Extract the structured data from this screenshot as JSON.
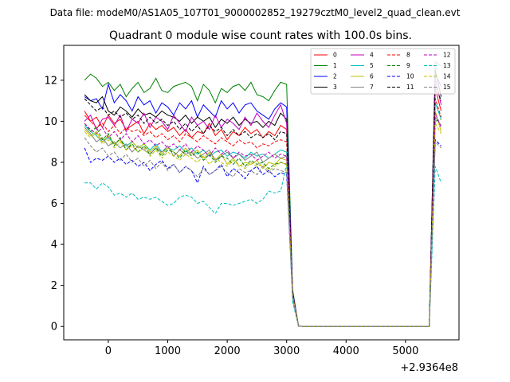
{
  "header": {
    "datafile": "Data file: modeM0/AS1A05_107T01_9000002852_19279cztM0_level2_quad_clean.evt"
  },
  "chart_data": {
    "type": "line",
    "title": "Quadrant 0 module wise count rates with 100.0s bins.",
    "xlabel": "",
    "ylabel": "",
    "x_offset_label": "+2.9364e8",
    "xlim": [
      -750,
      5900
    ],
    "ylim": [
      -0.65,
      13.7
    ],
    "xticks": [
      0,
      1000,
      2000,
      3000,
      4000,
      5000
    ],
    "yticks": [
      0,
      2,
      4,
      6,
      8,
      10,
      12
    ],
    "grid": false,
    "legend_position": "top-right",
    "legend_columns": 4,
    "x": [
      -400,
      -300,
      -200,
      -100,
      0,
      100,
      200,
      300,
      400,
      500,
      600,
      700,
      800,
      900,
      1000,
      1100,
      1200,
      1300,
      1400,
      1500,
      1600,
      1700,
      1800,
      1900,
      2000,
      2100,
      2200,
      2300,
      2400,
      2500,
      2600,
      2700,
      2800,
      2900,
      3000,
      3100,
      3200,
      3300,
      3400,
      3500,
      3600,
      3700,
      3800,
      3900,
      4000,
      4100,
      4200,
      4300,
      4400,
      4500,
      4600,
      4700,
      4800,
      4900,
      5000,
      5100,
      5200,
      5300,
      5400,
      5500,
      5600
    ],
    "series": [
      {
        "name": "0",
        "color": "#ff0000",
        "dash": false,
        "values": [
          10.5,
          10.0,
          10.2,
          9.7,
          10.3,
          9.9,
          10.1,
          9.6,
          9.8,
          10.0,
          9.4,
          9.9,
          9.6,
          9.8,
          9.5,
          9.7,
          9.3,
          9.6,
          9.2,
          9.5,
          9.4,
          9.9,
          9.3,
          9.6,
          9.1,
          9.5,
          9.3,
          9.7,
          9.4,
          9.6,
          9.2,
          9.5,
          9.3,
          9.8,
          9.6,
          1.6,
          0.02,
          0,
          0,
          0,
          0,
          0,
          0,
          0,
          0,
          0,
          0,
          0,
          0,
          0,
          0,
          0,
          0,
          0,
          0,
          0,
          0,
          0,
          0,
          11.6,
          10.5
        ]
      },
      {
        "name": "1",
        "color": "#008000",
        "dash": false,
        "values": [
          12.0,
          12.3,
          12.1,
          11.7,
          11.9,
          11.5,
          11.8,
          11.2,
          11.6,
          11.9,
          11.4,
          11.6,
          12.1,
          11.5,
          11.4,
          11.7,
          11.8,
          11.9,
          11.7,
          11.0,
          11.8,
          11.5,
          10.9,
          11.6,
          11.4,
          11.7,
          11.8,
          11.5,
          11.9,
          11.3,
          11.2,
          11.0,
          11.5,
          11.9,
          11.8,
          1.8,
          0.02,
          0,
          0,
          0,
          0,
          0,
          0,
          0,
          0,
          0,
          0,
          0,
          0,
          0,
          0,
          0,
          0,
          0,
          0,
          0,
          0,
          0,
          0,
          12.9,
          12.7
        ]
      },
      {
        "name": "2",
        "color": "#0000ff",
        "dash": false,
        "values": [
          11.2,
          11.0,
          11.1,
          10.6,
          11.8,
          10.9,
          11.3,
          11.0,
          10.5,
          11.2,
          10.8,
          11.0,
          10.4,
          10.9,
          10.7,
          10.3,
          10.9,
          10.6,
          11.0,
          10.2,
          10.8,
          10.5,
          10.2,
          11.0,
          10.6,
          10.9,
          10.4,
          10.8,
          10.9,
          10.5,
          10.3,
          10.1,
          10.6,
          10.9,
          10.7,
          1.7,
          0.02,
          0,
          0,
          0,
          0,
          0,
          0,
          0,
          0,
          0,
          0,
          0,
          0,
          0,
          0,
          0,
          0,
          0,
          0,
          0,
          0,
          0,
          0,
          12.3,
          11.7
        ]
      },
      {
        "name": "3",
        "color": "#000000",
        "dash": false,
        "values": [
          11.3,
          11.0,
          10.9,
          11.2,
          10.5,
          10.3,
          10.7,
          10.5,
          10.2,
          10.6,
          10.3,
          10.4,
          10.2,
          10.5,
          10.3,
          10.2,
          10.0,
          10.3,
          9.9,
          10.2,
          10.0,
          10.2,
          9.7,
          10.1,
          9.9,
          10.2,
          9.8,
          10.1,
          9.9,
          10.0,
          9.7,
          10.0,
          9.8,
          10.4,
          10.1,
          1.6,
          0.02,
          0,
          0,
          0,
          0,
          0,
          0,
          0,
          0,
          0,
          0,
          0,
          0,
          0,
          0,
          0,
          0,
          0,
          0,
          0,
          0,
          0,
          0,
          12.5,
          11.2
        ]
      },
      {
        "name": "4",
        "color": "#bf00bf",
        "dash": false,
        "values": [
          10.0,
          10.3,
          9.6,
          10.1,
          10.2,
          9.8,
          10.3,
          9.5,
          10.1,
          9.9,
          10.4,
          9.7,
          10.2,
          10.0,
          9.6,
          10.3,
          9.9,
          9.5,
          10.2,
          9.8,
          10.0,
          9.6,
          10.3,
          9.7,
          10.1,
          9.9,
          9.6,
          10.2,
          9.8,
          10.4,
          10.0,
          9.7,
          10.3,
          10.8,
          9.9,
          1.6,
          0.02,
          0,
          0,
          0,
          0,
          0,
          0,
          0,
          0,
          0,
          0,
          0,
          0,
          0,
          0,
          0,
          0,
          0,
          0,
          0,
          0,
          0,
          0,
          12.1,
          10.8
        ]
      },
      {
        "name": "5",
        "color": "#00bfbf",
        "dash": false,
        "values": [
          9.8,
          9.5,
          9.3,
          9.0,
          9.2,
          8.9,
          9.1,
          8.8,
          9.0,
          8.7,
          8.9,
          8.6,
          8.9,
          8.5,
          8.7,
          8.6,
          8.8,
          8.5,
          8.7,
          8.4,
          8.6,
          8.3,
          8.5,
          8.6,
          8.3,
          8.5,
          8.4,
          8.2,
          8.5,
          8.3,
          8.4,
          8.2,
          8.4,
          8.6,
          8.5,
          1.5,
          0.02,
          0,
          0,
          0,
          0,
          0,
          0,
          0,
          0,
          0,
          0,
          0,
          0,
          0,
          0,
          0,
          0,
          0,
          0,
          0,
          0,
          0,
          0,
          10.9,
          10.1
        ]
      },
      {
        "name": "6",
        "color": "#bfbf00",
        "dash": false,
        "values": [
          9.6,
          9.3,
          9.5,
          9.0,
          9.3,
          8.9,
          9.1,
          8.6,
          9.0,
          8.7,
          8.9,
          8.5,
          8.8,
          8.4,
          8.7,
          8.5,
          8.3,
          8.7,
          8.4,
          8.6,
          8.2,
          8.5,
          8.1,
          8.4,
          7.9,
          8.2,
          7.8,
          8.0,
          7.9,
          8.1,
          7.7,
          8.0,
          7.9,
          8.2,
          8.1,
          1.5,
          0.02,
          0,
          0,
          0,
          0,
          0,
          0,
          0,
          0,
          0,
          0,
          0,
          0,
          0,
          0,
          0,
          0,
          0,
          0,
          0,
          0,
          0,
          0,
          10.5,
          9.5
        ]
      },
      {
        "name": "7",
        "color": "#808080",
        "dash": false,
        "values": [
          9.7,
          9.4,
          9.0,
          9.2,
          8.8,
          9.0,
          8.7,
          8.9,
          8.5,
          8.8,
          8.6,
          8.4,
          8.7,
          8.5,
          8.8,
          8.3,
          8.6,
          8.4,
          8.5,
          8.2,
          8.4,
          8.6,
          8.1,
          8.3,
          8.5,
          8.2,
          8.4,
          8.1,
          8.3,
          8.5,
          8.0,
          8.2,
          8.4,
          8.2,
          8.3,
          1.5,
          0.02,
          0,
          0,
          0,
          0,
          0,
          0,
          0,
          0,
          0,
          0,
          0,
          0,
          0,
          0,
          0,
          0,
          0,
          0,
          0,
          0,
          0,
          0,
          10.2,
          9.8
        ]
      },
      {
        "name": "8",
        "color": "#ff0000",
        "dash": true,
        "values": [
          10.3,
          10.0,
          9.7,
          9.9,
          9.5,
          9.8,
          9.4,
          9.7,
          9.5,
          9.6,
          9.3,
          9.5,
          9.2,
          9.4,
          9.1,
          9.3,
          9.0,
          9.4,
          9.2,
          9.0,
          9.3,
          9.1,
          8.9,
          9.2,
          9.0,
          8.8,
          9.1,
          8.9,
          9.0,
          8.7,
          8.9,
          8.8,
          9.0,
          9.1,
          9.0,
          1.6,
          0.02,
          0,
          0,
          0,
          0,
          0,
          0,
          0,
          0,
          0,
          0,
          0,
          0,
          0,
          0,
          0,
          0,
          0,
          0,
          0,
          0,
          0,
          0,
          11.1,
          10.2
        ]
      },
      {
        "name": "9",
        "color": "#008000",
        "dash": true,
        "values": [
          9.9,
          9.5,
          9.7,
          9.1,
          9.4,
          8.8,
          9.2,
          8.6,
          8.9,
          8.5,
          8.8,
          8.4,
          8.7,
          8.3,
          8.6,
          8.5,
          8.2,
          8.6,
          8.3,
          8.5,
          8.1,
          8.4,
          8.0,
          8.3,
          8.2,
          7.9,
          8.2,
          7.8,
          8.1,
          7.9,
          8.0,
          7.7,
          7.9,
          8.0,
          7.9,
          1.5,
          0.02,
          0,
          0,
          0,
          0,
          0,
          0,
          0,
          0,
          0,
          0,
          0,
          0,
          0,
          0,
          0,
          0,
          0,
          0,
          0,
          0,
          0,
          0,
          10.0,
          10.1
        ]
      },
      {
        "name": "10",
        "color": "#0000ff",
        "dash": true,
        "values": [
          8.7,
          8.0,
          8.2,
          8.1,
          8.3,
          8.0,
          8.2,
          7.9,
          8.1,
          7.8,
          8.0,
          7.6,
          7.9,
          8.1,
          7.7,
          7.9,
          7.5,
          7.8,
          7.6,
          7.0,
          7.8,
          7.4,
          7.6,
          7.9,
          7.3,
          7.7,
          7.5,
          7.2,
          7.6,
          7.8,
          7.4,
          7.6,
          7.3,
          7.5,
          7.4,
          1.4,
          0.02,
          0,
          0,
          0,
          0,
          0,
          0,
          0,
          0,
          0,
          0,
          0,
          0,
          0,
          0,
          0,
          0,
          0,
          0,
          0,
          0,
          0,
          0,
          9.1,
          8.8
        ]
      },
      {
        "name": "11",
        "color": "#000000",
        "dash": true,
        "values": [
          11.1,
          10.8,
          10.5,
          10.7,
          10.3,
          10.5,
          10.2,
          10.4,
          10.1,
          10.3,
          9.9,
          10.2,
          9.9,
          10.1,
          9.8,
          10.0,
          9.6,
          9.9,
          9.5,
          9.8,
          9.4,
          9.8,
          9.5,
          9.7,
          9.3,
          9.6,
          9.3,
          9.5,
          9.2,
          9.4,
          9.2,
          9.4,
          9.1,
          9.5,
          9.4,
          1.6,
          0.02,
          0,
          0,
          0,
          0,
          0,
          0,
          0,
          0,
          0,
          0,
          0,
          0,
          0,
          0,
          0,
          0,
          0,
          0,
          0,
          0,
          0,
          0,
          11.8,
          11.0
        ]
      },
      {
        "name": "12",
        "color": "#bf00bf",
        "dash": true,
        "values": [
          9.9,
          9.6,
          9.4,
          9.7,
          9.2,
          9.5,
          9.1,
          9.4,
          9.0,
          9.3,
          8.9,
          9.1,
          8.8,
          9.0,
          8.7,
          8.9,
          8.6,
          8.9,
          8.5,
          8.8,
          8.6,
          8.3,
          8.7,
          8.4,
          8.6,
          8.2,
          8.5,
          8.3,
          8.4,
          8.1,
          8.3,
          8.5,
          8.2,
          8.4,
          8.3,
          1.5,
          0.02,
          0,
          0,
          0,
          0,
          0,
          0,
          0,
          0,
          0,
          0,
          0,
          0,
          0,
          0,
          0,
          0,
          0,
          0,
          0,
          0,
          0,
          0,
          10.4,
          9.7
        ]
      },
      {
        "name": "13",
        "color": "#00bfbf",
        "dash": true,
        "values": [
          7.0,
          7.0,
          6.7,
          7.0,
          6.8,
          6.4,
          6.5,
          6.3,
          6.5,
          6.2,
          6.3,
          6.2,
          6.3,
          6.1,
          5.9,
          6.0,
          6.3,
          6.4,
          6.3,
          6.0,
          6.1,
          5.8,
          5.5,
          6.0,
          6.0,
          5.9,
          6.0,
          6.1,
          6.2,
          6.0,
          6.2,
          6.6,
          6.5,
          6.6,
          7.9,
          1.2,
          0.02,
          0,
          0,
          0,
          0,
          0,
          0,
          0,
          0,
          0,
          0,
          0,
          0,
          0,
          0,
          0,
          0,
          0,
          0,
          0,
          0,
          0,
          0,
          7.8,
          7.0
        ]
      },
      {
        "name": "14",
        "color": "#bfbf00",
        "dash": true,
        "values": [
          9.5,
          9.2,
          9.4,
          8.9,
          9.1,
          8.7,
          9.0,
          8.6,
          8.8,
          8.5,
          8.7,
          8.3,
          8.6,
          8.2,
          8.5,
          8.3,
          8.1,
          8.4,
          8.2,
          8.0,
          8.3,
          7.9,
          8.2,
          8.0,
          7.8,
          8.1,
          7.9,
          7.7,
          8.0,
          7.8,
          7.9,
          7.6,
          7.8,
          8.0,
          7.9,
          1.5,
          0.02,
          0,
          0,
          0,
          0,
          0,
          0,
          0,
          0,
          0,
          0,
          0,
          0,
          0,
          0,
          0,
          0,
          0,
          0,
          0,
          0,
          0,
          0,
          9.9,
          9.4
        ]
      },
      {
        "name": "15",
        "color": "#808080",
        "dash": true,
        "values": [
          9.2,
          8.8,
          8.5,
          8.7,
          8.3,
          8.5,
          8.1,
          8.4,
          8.0,
          8.2,
          7.8,
          8.1,
          7.7,
          8.0,
          7.6,
          7.9,
          7.5,
          7.8,
          7.6,
          7.3,
          7.7,
          7.4,
          7.6,
          7.8,
          7.5,
          7.3,
          7.7,
          7.5,
          7.6,
          7.4,
          7.8,
          7.5,
          7.7,
          7.6,
          7.5,
          1.4,
          0.02,
          0,
          0,
          0,
          0,
          0,
          0,
          0,
          0,
          0,
          0,
          0,
          0,
          0,
          0,
          0,
          0,
          0,
          0,
          0,
          0,
          0,
          0,
          9.0,
          8.7
        ]
      }
    ]
  }
}
